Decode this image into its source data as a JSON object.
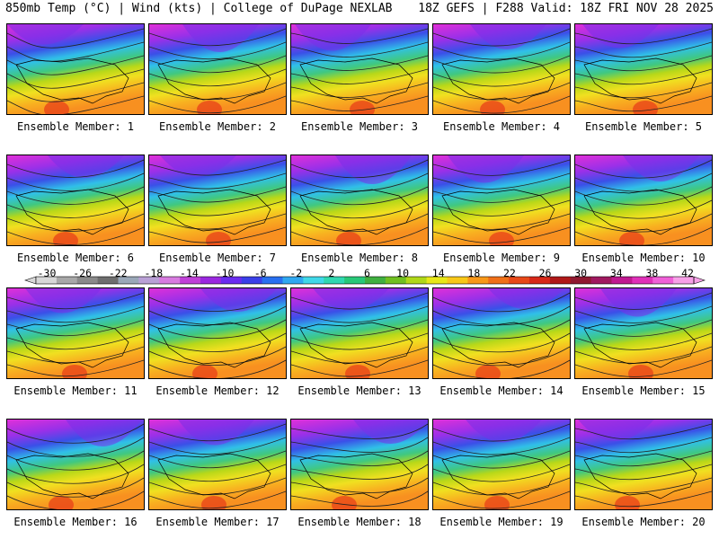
{
  "header": {
    "left": "850mb Temp (°C) | Wind (kts) | College of DuPage NEXLAB",
    "right": "18Z GEFS | F288 Valid: 18Z FRI NOV 28 2025"
  },
  "panels": [
    {
      "label": "Ensemble Member: 1"
    },
    {
      "label": "Ensemble Member: 2"
    },
    {
      "label": "Ensemble Member: 3"
    },
    {
      "label": "Ensemble Member: 4"
    },
    {
      "label": "Ensemble Member: 5"
    },
    {
      "label": "Ensemble Member: 6"
    },
    {
      "label": "Ensemble Member: 7"
    },
    {
      "label": "Ensemble Member: 8"
    },
    {
      "label": "Ensemble Member: 9"
    },
    {
      "label": "Ensemble Member: 10"
    },
    {
      "label": "Ensemble Member: 11"
    },
    {
      "label": "Ensemble Member: 12"
    },
    {
      "label": "Ensemble Member: 13"
    },
    {
      "label": "Ensemble Member: 14"
    },
    {
      "label": "Ensemble Member: 15"
    },
    {
      "label": "Ensemble Member: 16"
    },
    {
      "label": "Ensemble Member: 17"
    },
    {
      "label": "Ensemble Member: 18"
    },
    {
      "label": "Ensemble Member: 19"
    },
    {
      "label": "Ensemble Member: 20"
    }
  ],
  "colorbar": {
    "ticks": [
      "-30",
      "-26",
      "-22",
      "-18",
      "-14",
      "-10",
      "-6",
      "-2",
      "2",
      "6",
      "10",
      "14",
      "18",
      "22",
      "26",
      "30",
      "34",
      "38",
      "42"
    ],
    "colors": [
      "#d8d8d8",
      "#a8a8a8",
      "#8a8a8a",
      "#6e6e6e",
      "#9aa8b8",
      "#b9a0d6",
      "#d87be0",
      "#c040d8",
      "#9a28e0",
      "#6a2cf0",
      "#3a40e8",
      "#2870f0",
      "#30a8f0",
      "#40d8e8",
      "#30d8b0",
      "#28c878",
      "#40b040",
      "#70c020",
      "#b0d818",
      "#e8e818",
      "#f8c818",
      "#f89818",
      "#f07018",
      "#e84818",
      "#d82818",
      "#b01818",
      "#901830",
      "#a01860",
      "#c01890",
      "#e030b8",
      "#f060d8",
      "#f8a0e8"
    ]
  }
}
